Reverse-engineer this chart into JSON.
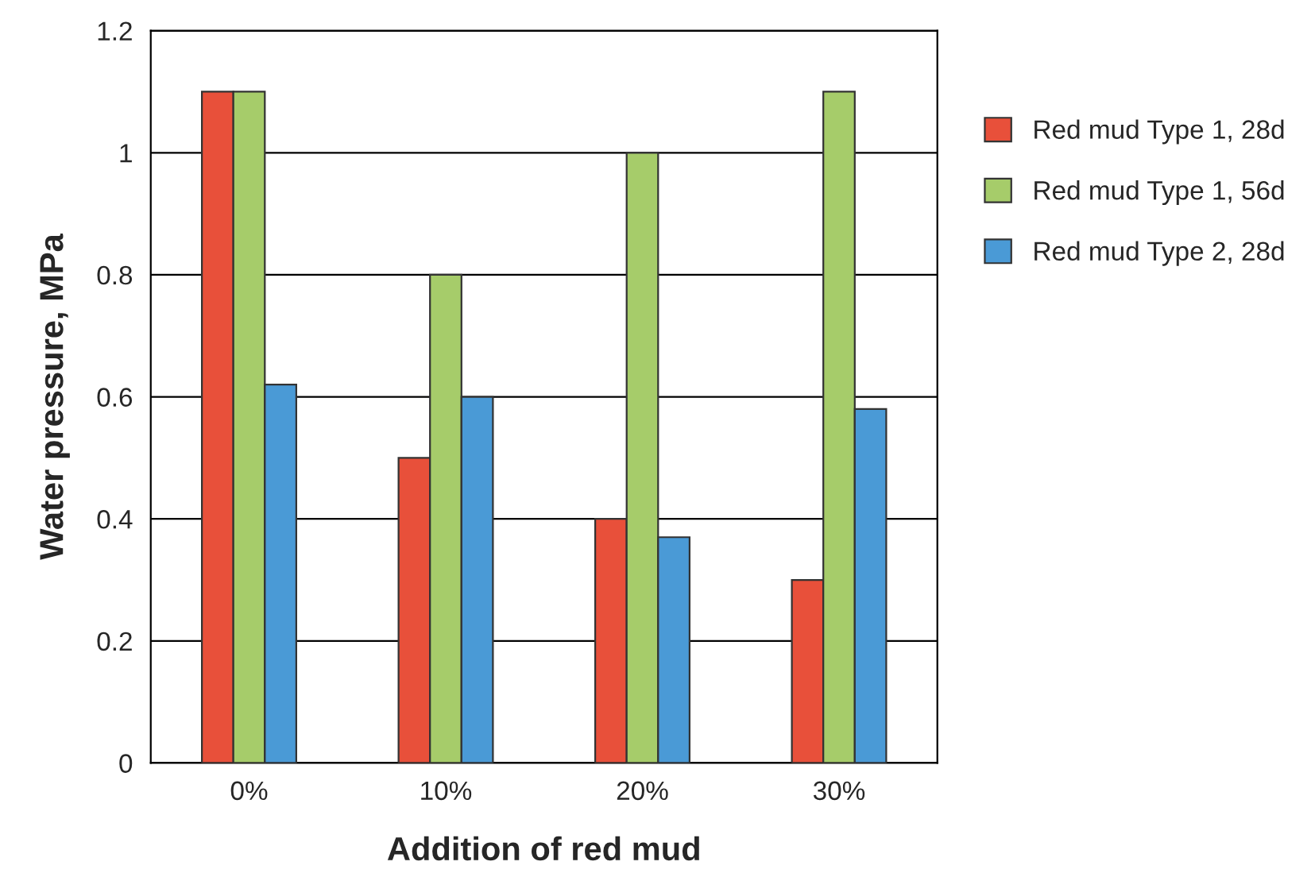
{
  "chart_data": {
    "type": "bar",
    "xlabel": "Addition of red mud",
    "ylabel": "Water pressure, MPa",
    "categories": [
      "0%",
      "10%",
      "20%",
      "30%"
    ],
    "series": [
      {
        "name": "Red mud Type 1, 28d",
        "color": "#e8503a",
        "values": [
          1.1,
          0.5,
          0.4,
          0.3
        ]
      },
      {
        "name": "Red mud Type 1, 56d",
        "color": "#a6cc6a",
        "values": [
          1.1,
          0.8,
          1.0,
          1.1
        ]
      },
      {
        "name": "Red mud Type 2, 28d",
        "color": "#4a9ad6",
        "values": [
          0.62,
          0.6,
          0.37,
          0.58
        ]
      }
    ],
    "ylim": [
      0,
      1.2
    ],
    "yticks": [
      0,
      0.2,
      0.4,
      0.6,
      0.8,
      1,
      1.2
    ],
    "grid": "y",
    "legend": "right"
  }
}
